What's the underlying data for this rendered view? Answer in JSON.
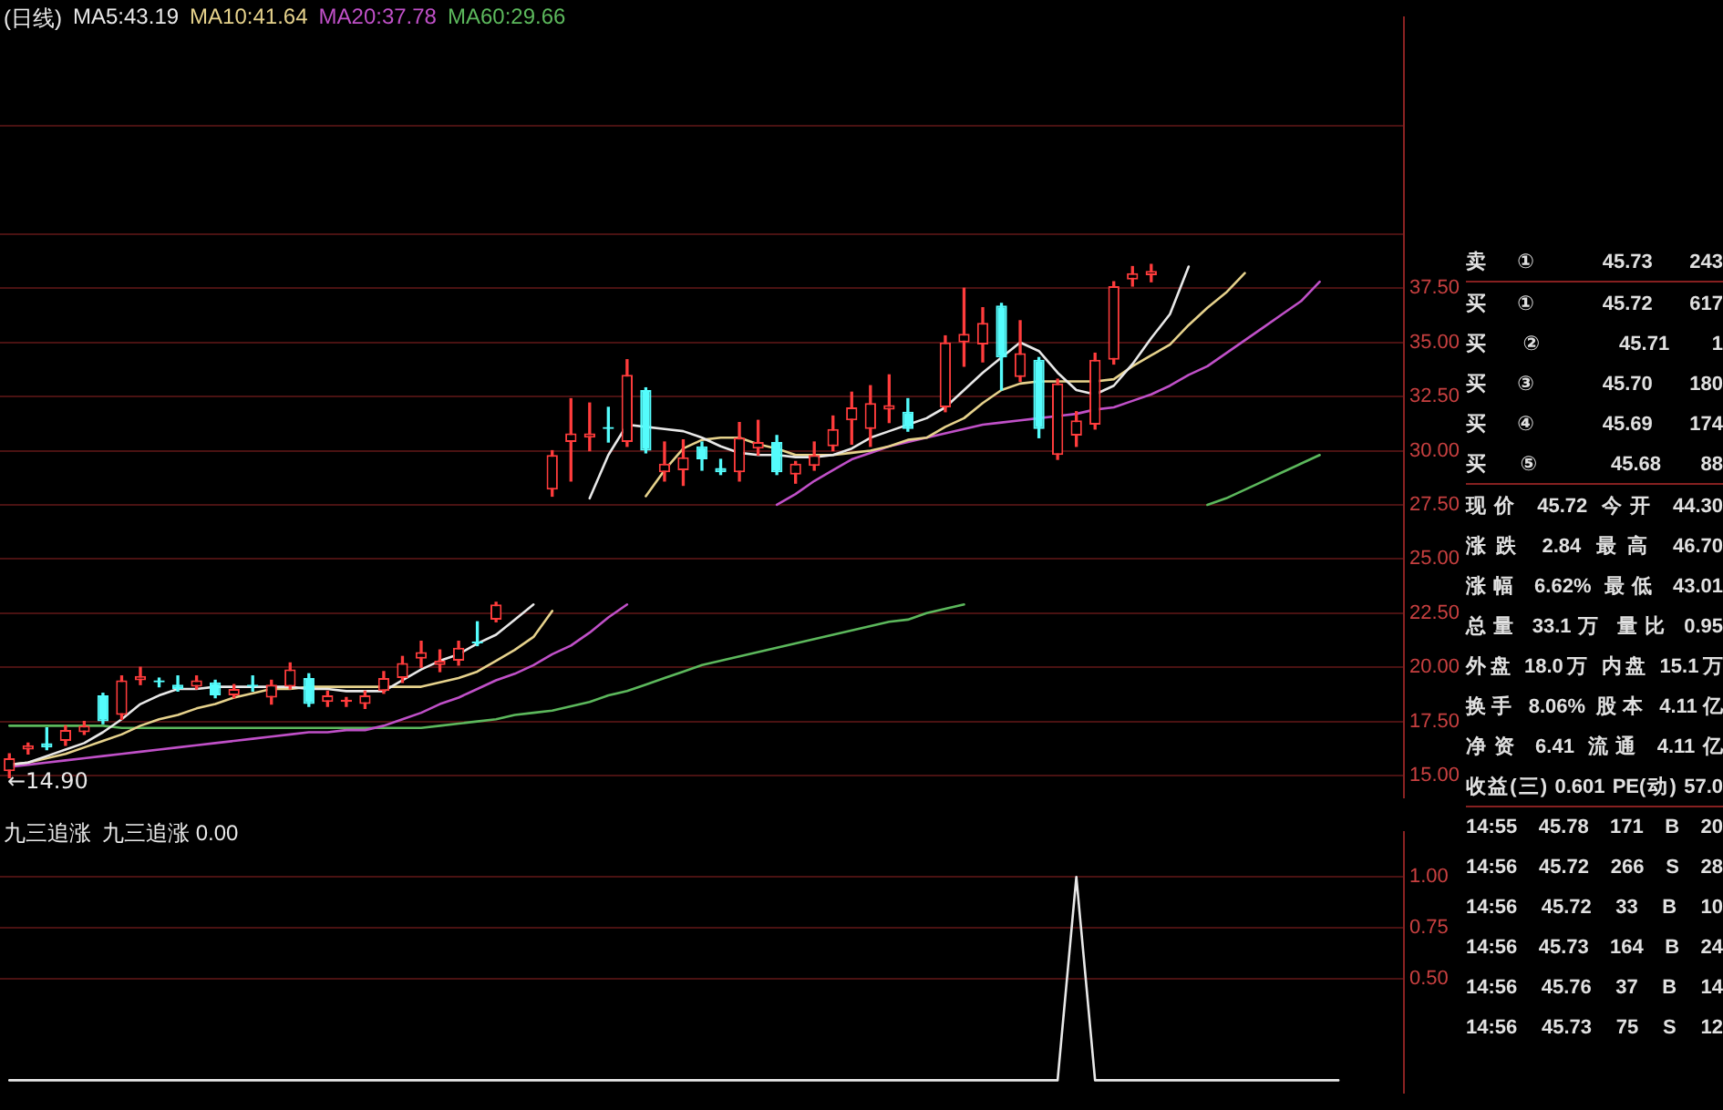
{
  "chart_data": [
    {
      "type": "candlestick",
      "title": "(日线)",
      "legend": "top left",
      "grid": "y",
      "tick_labels": "y",
      "categories": [
        null,
        null,
        null,
        null,
        null,
        null,
        null,
        null,
        null,
        null,
        null,
        null,
        null,
        null,
        null,
        null,
        null,
        null,
        null,
        null,
        null,
        null,
        null,
        null,
        null,
        null,
        null,
        null,
        null,
        null,
        null,
        null,
        null,
        null,
        null,
        null,
        null,
        null,
        null,
        null,
        null,
        null,
        null,
        null,
        null,
        null,
        null,
        null,
        null,
        null,
        null,
        null,
        null,
        null,
        null,
        null,
        null,
        null,
        null,
        null,
        null,
        null,
        null,
        null,
        null,
        null,
        null,
        null,
        null,
        null,
        null,
        null,
        null,
        null,
        null
      ],
      "ohlc": [
        [
          15.2,
          16.0,
          14.9,
          15.8
        ],
        [
          16.2,
          16.5,
          16.0,
          16.4
        ],
        [
          16.5,
          17.2,
          16.2,
          16.3
        ],
        [
          16.6,
          17.3,
          16.4,
          17.1
        ],
        [
          17.0,
          17.5,
          16.9,
          17.3
        ],
        [
          18.7,
          18.8,
          17.4,
          17.5
        ],
        [
          17.8,
          19.6,
          17.6,
          19.4
        ],
        [
          19.4,
          20.0,
          19.2,
          19.6
        ],
        [
          19.4,
          19.5,
          19.1,
          19.3
        ],
        [
          19.2,
          19.6,
          18.9,
          19.0
        ],
        [
          19.1,
          19.6,
          19.0,
          19.4
        ],
        [
          19.3,
          19.4,
          18.6,
          18.7
        ],
        [
          18.7,
          19.2,
          18.6,
          19.0
        ],
        [
          19.2,
          19.6,
          18.9,
          19.1
        ],
        [
          18.6,
          19.4,
          18.3,
          19.2
        ],
        [
          19.1,
          20.2,
          19.0,
          19.9
        ],
        [
          19.5,
          19.7,
          18.2,
          18.3
        ],
        [
          18.4,
          18.9,
          18.2,
          18.7
        ],
        [
          18.4,
          18.6,
          18.2,
          18.5
        ],
        [
          18.3,
          18.9,
          18.1,
          18.7
        ],
        [
          18.9,
          19.8,
          18.8,
          19.5
        ],
        [
          19.5,
          20.5,
          19.3,
          20.2
        ],
        [
          20.4,
          21.2,
          20.0,
          20.7
        ],
        [
          20.1,
          20.8,
          19.8,
          20.3
        ],
        [
          20.3,
          21.2,
          20.1,
          20.9
        ],
        [
          21.2,
          22.1,
          21.0,
          21.1
        ],
        [
          22.2,
          23.0,
          22.1,
          22.9
        ],
        null,
        null,
        [
          28.2,
          30.0,
          27.9,
          29.8
        ],
        [
          30.4,
          32.4,
          28.6,
          30.8
        ],
        [
          30.6,
          32.2,
          30.0,
          30.8
        ],
        [
          31.1,
          32.0,
          30.4,
          31.0
        ],
        [
          30.4,
          34.2,
          30.2,
          33.5
        ],
        [
          32.8,
          32.9,
          29.9,
          30.0
        ],
        [
          29.0,
          30.4,
          28.6,
          29.4
        ],
        [
          29.1,
          30.5,
          28.4,
          29.7
        ],
        [
          30.2,
          30.4,
          29.1,
          29.6
        ],
        [
          29.2,
          29.6,
          28.9,
          29.0
        ],
        [
          29.0,
          31.3,
          28.6,
          30.6
        ],
        [
          30.1,
          31.4,
          29.8,
          30.4
        ],
        [
          30.4,
          30.7,
          28.9,
          29.0
        ],
        [
          28.9,
          29.5,
          28.5,
          29.4
        ],
        [
          29.3,
          30.4,
          29.1,
          29.8
        ],
        [
          30.2,
          31.6,
          30.0,
          31.0
        ],
        [
          31.4,
          32.7,
          30.3,
          32.0
        ],
        [
          31.0,
          33.0,
          30.2,
          32.2
        ],
        [
          31.9,
          33.5,
          31.3,
          32.1
        ],
        [
          31.8,
          32.4,
          30.9,
          31.0
        ],
        null,
        [
          32.0,
          35.3,
          31.8,
          35.0
        ],
        [
          35.0,
          37.5,
          33.9,
          35.4
        ],
        [
          34.9,
          36.6,
          34.1,
          35.9
        ],
        [
          36.7,
          36.8,
          32.8,
          34.3
        ],
        [
          33.4,
          36.0,
          33.2,
          34.5
        ],
        [
          34.2,
          34.3,
          30.6,
          31.0
        ],
        [
          29.8,
          33.3,
          29.6,
          33.1
        ],
        [
          30.7,
          31.8,
          30.2,
          31.4
        ],
        [
          31.2,
          34.5,
          31.0,
          34.2
        ],
        [
          34.2,
          37.8,
          34.0,
          37.6
        ],
        [
          37.9,
          38.5,
          37.6,
          38.2
        ],
        [
          38.1,
          38.6,
          37.8,
          38.3
        ],
        null,
        null,
        null,
        null,
        null,
        null,
        null,
        null,
        null,
        null,
        null,
        null,
        null
      ],
      "colors": [
        "#ff3c3c",
        "#ff3c3c",
        "#54fcfc",
        "#ff3c3c",
        "#ff3c3c",
        "#54fcfc",
        "#ff3c3c",
        "#ff3c3c",
        "#54fcfc",
        "#54fcfc",
        "#ff3c3c",
        "#54fcfc",
        "#ff3c3c",
        "#54fcfc",
        "#ff3c3c",
        "#ff3c3c",
        "#54fcfc",
        "#ff3c3c",
        "#ff3c3c",
        "#ff3c3c",
        "#ff3c3c",
        "#ff3c3c",
        "#ff3c3c",
        "#ff3c3c",
        "#ff3c3c",
        "#54fcfc",
        "#ff3c3c",
        null,
        null,
        "#ff3c3c",
        "#ff3c3c",
        "#ff3c3c",
        "#54fcfc",
        "#ff3c3c",
        "#54fcfc",
        "#ff3c3c",
        "#ff3c3c",
        "#54fcfc",
        "#54fcfc",
        "#ff3c3c",
        "#ff3c3c",
        "#54fcfc",
        "#ff3c3c",
        "#ff3c3c",
        "#ff3c3c",
        "#ff3c3c",
        "#ff3c3c",
        "#ff3c3c",
        "#54fcfc",
        null,
        "#ff3c3c",
        "#ff3c3c",
        "#ff3c3c",
        "#54fcfc",
        "#ff3c3c",
        "#54fcfc",
        "#ff3c3c",
        "#ff3c3c",
        "#ff3c3c",
        "#ff3c3c",
        "#ff3c3c",
        "#ff3c3c",
        null,
        null,
        null,
        null,
        null,
        null,
        null,
        null,
        null,
        null,
        null,
        null,
        null
      ],
      "series": [
        {
          "type": "line",
          "name": "MA5:43.19",
          "color": "#e8e8e8",
          "values": [
            15.5,
            15.6,
            15.9,
            16.2,
            16.5,
            17.0,
            17.6,
            18.3,
            18.7,
            19.0,
            19.0,
            19.1,
            19.1,
            19.1,
            19.1,
            19.1,
            19.0,
            19.0,
            18.9,
            18.9,
            18.9,
            19.4,
            19.9,
            20.3,
            20.6,
            21.1,
            21.5,
            22.2,
            22.9,
            null,
            null,
            27.8,
            29.8,
            31.2,
            31.1,
            31.0,
            30.9,
            30.6,
            30.2,
            29.9,
            29.8,
            29.8,
            29.7,
            29.7,
            29.8,
            30.1,
            30.6,
            30.9,
            31.2,
            31.5,
            32.0,
            32.8,
            33.6,
            34.3,
            35.0,
            34.6,
            33.6,
            32.8,
            32.6,
            33.0,
            34.0,
            35.2,
            36.3,
            38.5,
            null,
            null,
            null,
            null,
            null,
            null,
            null,
            null,
            null,
            null,
            null
          ]
        },
        {
          "type": "line",
          "name": "MA10:41.64",
          "color": "#e6d28c",
          "values": [
            15.5,
            15.6,
            15.8,
            16.0,
            16.3,
            16.6,
            16.9,
            17.3,
            17.6,
            17.8,
            18.1,
            18.3,
            18.6,
            18.8,
            19.0,
            19.0,
            19.1,
            19.1,
            19.1,
            19.1,
            19.1,
            19.1,
            19.1,
            19.3,
            19.5,
            19.8,
            20.3,
            20.8,
            21.4,
            22.6,
            null,
            null,
            null,
            null,
            27.9,
            29.1,
            30.1,
            30.5,
            30.6,
            30.6,
            30.3,
            30.1,
            29.8,
            29.8,
            29.8,
            29.9,
            30.0,
            30.2,
            30.5,
            30.6,
            31.1,
            31.5,
            32.2,
            32.8,
            33.1,
            33.2,
            33.2,
            33.2,
            33.2,
            33.3,
            33.9,
            34.4,
            34.9,
            35.8,
            36.6,
            37.3,
            38.2,
            null,
            null,
            null,
            null,
            null,
            null,
            null,
            null
          ]
        },
        {
          "type": "line",
          "name": "MA20:37.78",
          "color": "#c050c8",
          "values": [
            15.4,
            15.5,
            15.6,
            15.7,
            15.8,
            15.9,
            16.0,
            16.1,
            16.2,
            16.3,
            16.4,
            16.5,
            16.6,
            16.7,
            16.8,
            16.9,
            17.0,
            17.0,
            17.1,
            17.1,
            17.3,
            17.6,
            17.9,
            18.3,
            18.6,
            19.0,
            19.4,
            19.7,
            20.1,
            20.6,
            21.0,
            21.6,
            22.3,
            22.9,
            null,
            null,
            null,
            null,
            null,
            null,
            null,
            27.5,
            28.0,
            28.6,
            29.1,
            29.6,
            29.9,
            30.2,
            30.4,
            30.6,
            30.8,
            31.0,
            31.2,
            31.3,
            31.4,
            31.5,
            31.6,
            31.7,
            31.9,
            32.0,
            32.3,
            32.6,
            33.0,
            33.5,
            33.9,
            34.5,
            35.1,
            35.7,
            36.3,
            36.9,
            37.8,
            null,
            null,
            null,
            null
          ]
        },
        {
          "type": "line",
          "name": "MA60:29.66",
          "color": "#5cb85c",
          "values": [
            17.3,
            17.3,
            17.3,
            17.3,
            17.3,
            17.3,
            17.2,
            17.2,
            17.2,
            17.2,
            17.2,
            17.2,
            17.2,
            17.2,
            17.2,
            17.2,
            17.2,
            17.2,
            17.2,
            17.2,
            17.2,
            17.2,
            17.2,
            17.3,
            17.4,
            17.5,
            17.6,
            17.8,
            17.9,
            18.0,
            18.2,
            18.4,
            18.7,
            18.9,
            19.2,
            19.5,
            19.8,
            20.1,
            20.3,
            20.5,
            20.7,
            20.9,
            21.1,
            21.3,
            21.5,
            21.7,
            21.9,
            22.1,
            22.2,
            22.5,
            22.7,
            22.9,
            null,
            null,
            null,
            null,
            null,
            null,
            null,
            null,
            null,
            null,
            null,
            null,
            27.5,
            27.8,
            28.2,
            28.6,
            29.0,
            29.4,
            29.8,
            null,
            null,
            null,
            null
          ]
        }
      ],
      "ylim": [
        14,
        50
      ],
      "yticks": [
        {
          "value": 15,
          "label": "15.00"
        },
        {
          "value": 17.5,
          "label": "17.50"
        },
        {
          "value": 20,
          "label": "20.00"
        },
        {
          "value": 22.5,
          "label": "22.50"
        },
        {
          "value": 25,
          "label": "25.00"
        },
        {
          "value": 27.5,
          "label": "27.50"
        },
        {
          "value": 30,
          "label": "30.00"
        },
        {
          "value": 32.5,
          "label": "32.50"
        },
        {
          "value": 35,
          "label": "35.00"
        },
        {
          "value": 37.5,
          "label": "37.50"
        },
        {
          "value": 40,
          "label": null
        },
        {
          "value": 45,
          "label": null
        }
      ],
      "annotations": [
        "←14.90"
      ]
    },
    {
      "type": "line",
      "title": "九三追涨",
      "legend": "top left",
      "grid": "y",
      "tick_labels": "y",
      "categories": [
        null,
        null,
        null,
        null,
        null,
        null,
        null,
        null,
        null,
        null,
        null,
        null,
        null,
        null,
        null,
        null,
        null,
        null,
        null,
        null,
        null,
        null,
        null,
        null,
        null,
        null,
        null,
        null,
        null,
        null,
        null,
        null,
        null,
        null,
        null,
        null,
        null,
        null,
        null,
        null,
        null,
        null,
        null,
        null,
        null,
        null,
        null,
        null,
        null,
        null,
        null,
        null,
        null,
        null,
        null,
        null,
        null,
        null,
        null,
        null,
        null,
        null,
        null,
        null,
        null,
        null,
        null,
        null,
        null,
        null,
        null,
        null,
        null,
        null,
        null
      ],
      "series": [
        {
          "name": "九三追涨 0.00",
          "color": "#e8e8e8",
          "values": [
            0,
            0,
            0,
            0,
            0,
            0,
            0,
            0,
            0,
            0,
            0,
            0,
            0,
            0,
            0,
            0,
            0,
            0,
            0,
            0,
            0,
            0,
            0,
            0,
            0,
            0,
            0,
            0,
            0,
            0,
            0,
            0,
            0,
            0,
            0,
            0,
            0,
            0,
            0,
            0,
            0,
            0,
            0,
            0,
            0,
            0,
            0,
            0,
            0,
            0,
            0,
            0,
            0,
            0,
            0,
            0,
            0,
            1,
            0,
            0,
            0,
            0,
            0,
            0,
            0,
            0,
            0,
            0,
            0,
            0,
            0,
            0,
            null,
            null,
            null
          ]
        }
      ],
      "ylim": [
        -0.06,
        1.22
      ],
      "yticks": [
        {
          "value": 0.5,
          "label": "0.50"
        },
        {
          "value": 0.75,
          "label": "0.75"
        },
        {
          "value": 1,
          "label": "1.00"
        }
      ]
    },
    {
      "type": "other",
      "annotations": [
        "卖① 45.73 243",
        "买① 45.72 617",
        "买② 45.71 1",
        "买③ 45.70 180",
        "买④ 45.69 174",
        "买⑤ 45.68 88",
        "现价 45.72 今开 44.30",
        "涨跌 2.84 最高 46.70",
        "涨幅 6.62% 最低 43.01",
        "总量 33.1万 量比 0.95",
        "外盘 18.0万 内盘 15.1万",
        "换手 8.06% 股本 4.11亿",
        "净资 6.41 流通 4.11亿",
        "收益(三) 0.601 PE(动) 57.0",
        "14:55 45.78 171 B 20",
        "14:56 45.72 266 S 28",
        "14:56 45.72 33 B 10",
        "14:56 45.73 164 B 24",
        "14:56 45.76 37 B 14",
        "14:56 45.73 75 S 12"
      ]
    }
  ]
}
